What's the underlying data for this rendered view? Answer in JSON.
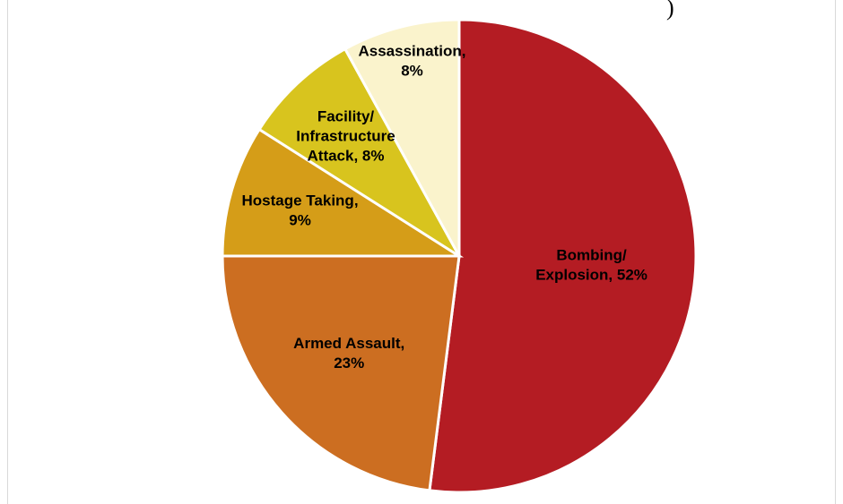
{
  "corner_mark": ")",
  "chart_data": {
    "type": "pie",
    "title": "",
    "start_angle_deg": 0,
    "direction": "clockwise",
    "slices": [
      {
        "label_lines": [
          "Bombing/",
          "Explosion, 52%"
        ],
        "category": "Bombing/ Explosion",
        "value": 52,
        "color": "#B41C23"
      },
      {
        "label_lines": [
          "Armed Assault,",
          "23%"
        ],
        "category": "Armed Assault",
        "value": 23,
        "color": "#CC6E21"
      },
      {
        "label_lines": [
          "Hostage Taking,",
          "9%"
        ],
        "category": "Hostage Taking",
        "value": 9,
        "color": "#D59D18"
      },
      {
        "label_lines": [
          "Facility/",
          "Infrastructure",
          "Attack, 8%"
        ],
        "category": "Facility/ Infrastructure Attack",
        "value": 8,
        "color": "#D8C41E"
      },
      {
        "label_lines": [
          "Assassination,",
          "8%"
        ],
        "category": "Assassination",
        "value": 8,
        "color": "#FAF3CC"
      }
    ]
  }
}
